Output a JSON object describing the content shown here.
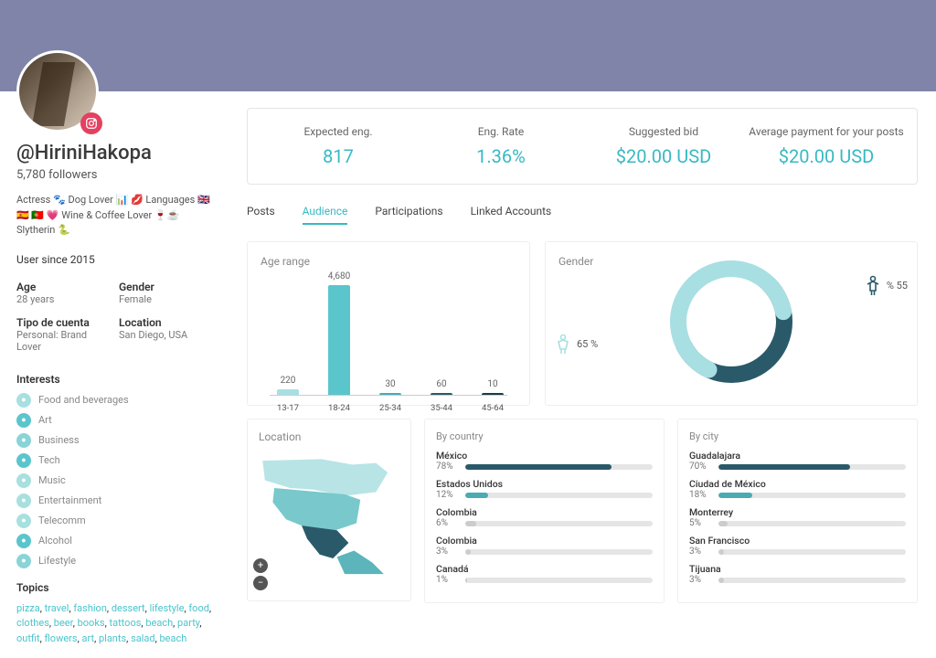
{
  "profile": {
    "handle": "@HiriniHakopa",
    "followers": "5,780 followers",
    "bio": "Actress 🐾 Dog Lover 📊 💋 Languages 🇬🇧 🇪🇸 🇵🇹 💗 Wine & Coffee Lover 🍷☕ Slytherin 🐍",
    "since": "User since 2015",
    "info": {
      "age_label": "Age",
      "age_value": "28 years",
      "gender_label": "Gender",
      "gender_value": "Female",
      "account_type_label": "Tipo de cuenta",
      "account_type_value": "Personal: Brand Lover",
      "location_label": "Location",
      "location_value": "San Diego, USA"
    },
    "interests_title": "Interests",
    "interests": [
      {
        "label": "Food and beverages",
        "color": "#a8e0e0"
      },
      {
        "label": "Art",
        "color": "#5bc5cc"
      },
      {
        "label": "Business",
        "color": "#8ad4d8"
      },
      {
        "label": "Tech",
        "color": "#5bc5cc"
      },
      {
        "label": "Music",
        "color": "#a8e0e0"
      },
      {
        "label": "Entertainment",
        "color": "#a8e0e0"
      },
      {
        "label": "Telecomm",
        "color": "#a8e0e0"
      },
      {
        "label": "Alcohol",
        "color": "#5bc5cc"
      },
      {
        "label": "Lifestyle",
        "color": "#8ad4d8"
      }
    ],
    "topics_title": "Topics",
    "topics": [
      "pizza",
      "travel",
      "fashion",
      "dessert",
      "lifestyle",
      "food",
      "clothes",
      "beer",
      "books",
      "tattoos",
      "beach",
      "party",
      "outfit",
      "flowers",
      "art",
      "plants",
      "salad",
      "beach"
    ]
  },
  "metrics": [
    {
      "label": "Expected eng.",
      "value": "817"
    },
    {
      "label": "Eng. Rate",
      "value": "1.36%"
    },
    {
      "label": "Suggested bid",
      "value": "$20.00 USD"
    },
    {
      "label": "Average payment for your posts",
      "value": "$20.00 USD"
    }
  ],
  "tabs": [
    "Posts",
    "Audience",
    "Participations",
    "Linked Accounts"
  ],
  "active_tab": "Audience",
  "age_chart": {
    "title": "Age range",
    "categories": [
      "13-17",
      "18-24",
      "25-34",
      "35-44",
      "45-64"
    ],
    "values": [
      220,
      4680,
      30,
      60,
      10
    ],
    "max": 4680,
    "bar_colors": [
      "#a8dfe3",
      "#5bc5cc",
      "#4aabb2",
      "#2a5a6a",
      "#1a3a4a"
    ]
  },
  "gender_chart": {
    "title": "Gender",
    "female_pct": 65,
    "female_label": "65 %",
    "male_pct": 55,
    "male_label": "% 55",
    "colors": {
      "female": "#a8dfe3",
      "male": "#2a5a6a",
      "track": "#f0f0f0"
    }
  },
  "location": {
    "title": "Location",
    "map_colors": {
      "mexico": "#2a5a6a",
      "usa": "#78c8cc",
      "canada": "#b8e4e6",
      "sa": "#5bb5bb"
    },
    "by_country": {
      "title": "By country",
      "items": [
        {
          "name": "México",
          "pct": "78%",
          "width": 78,
          "color": "#2a5a6a"
        },
        {
          "name": "Estados Unidos",
          "pct": "12%",
          "width": 12,
          "color": "#4aabb2"
        },
        {
          "name": "Colombia",
          "pct": "6%",
          "width": 6,
          "color": "#ccc"
        },
        {
          "name": "Colombia",
          "pct": "3%",
          "width": 3,
          "color": "#ccc"
        },
        {
          "name": "Canadá",
          "pct": "1%",
          "width": 1,
          "color": "#ccc"
        }
      ]
    },
    "by_city": {
      "title": "By city",
      "items": [
        {
          "name": "Guadalajara",
          "pct": "70%",
          "width": 70,
          "color": "#2a5a6a"
        },
        {
          "name": "Ciudad de México",
          "pct": "18%",
          "width": 18,
          "color": "#4aabb2"
        },
        {
          "name": "Monterrey",
          "pct": "5%",
          "width": 5,
          "color": "#ccc"
        },
        {
          "name": "San Francisco",
          "pct": "3%",
          "width": 3,
          "color": "#ccc"
        },
        {
          "name": "Tijuana",
          "pct": "3%",
          "width": 3,
          "color": "#ccc"
        }
      ]
    }
  }
}
